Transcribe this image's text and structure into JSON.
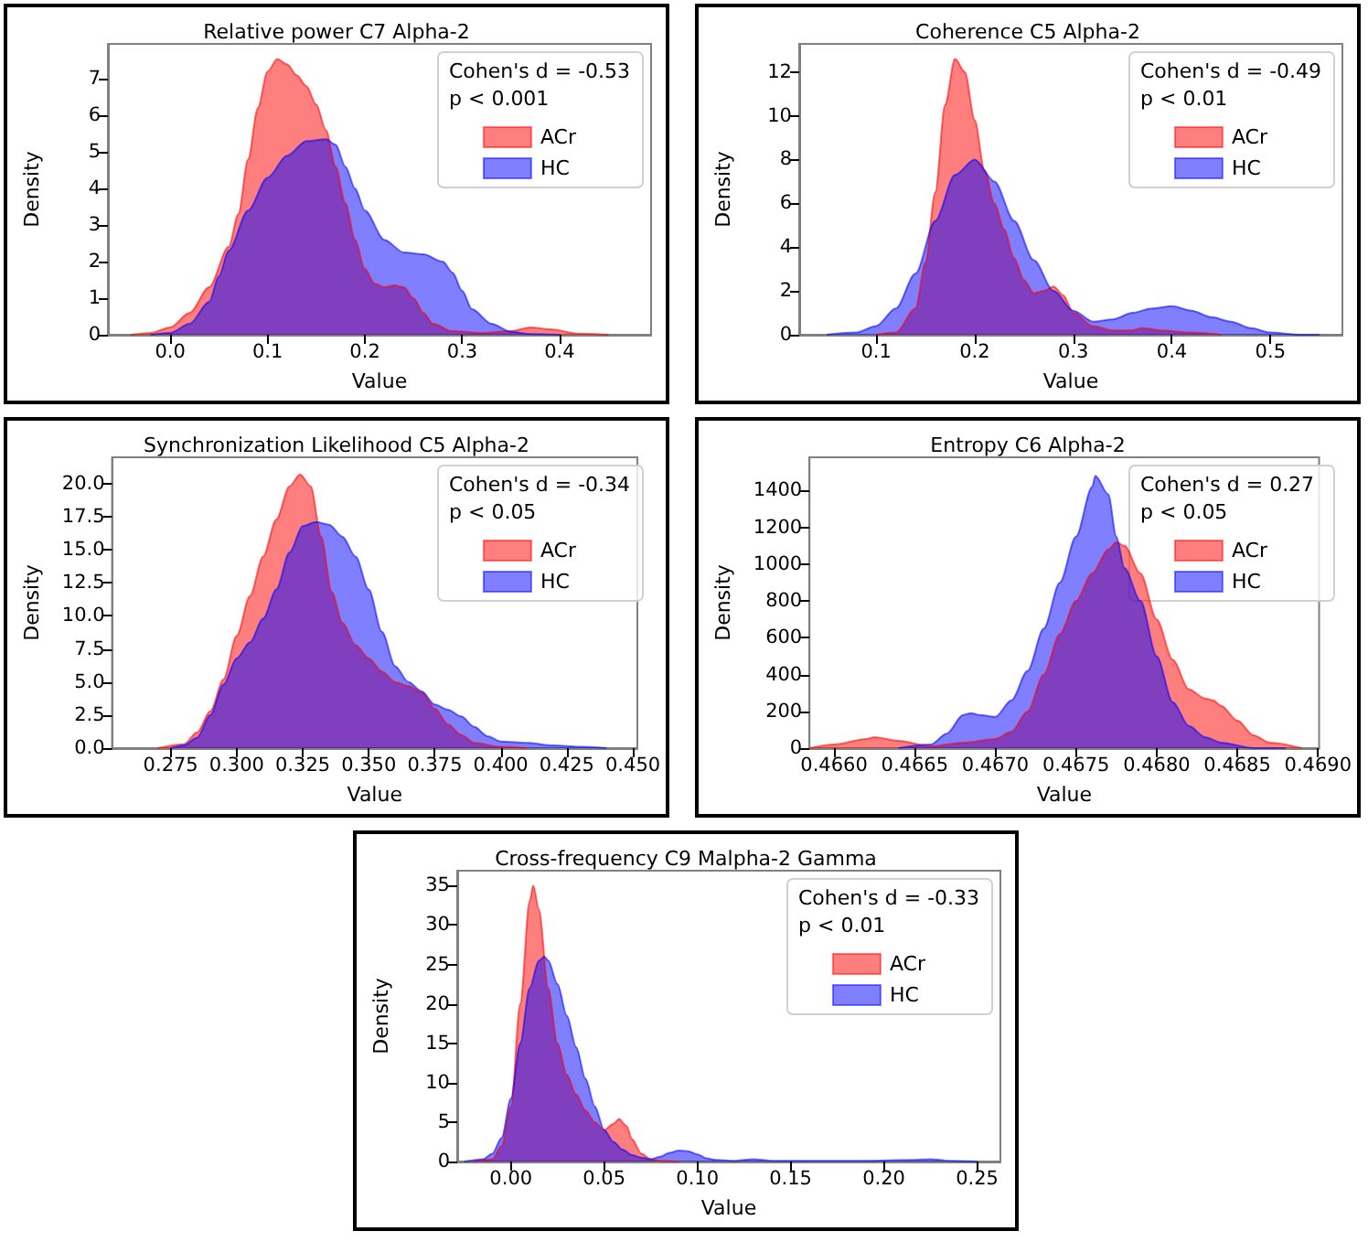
{
  "chart_data": [
    {
      "type": "area",
      "title": "Relative power C7 Alpha-2",
      "xlabel": "Value",
      "ylabel": "Density",
      "legend": "top right",
      "annotations": [
        "Cohen's d = -0.53",
        "p < 0.001"
      ],
      "xlim": [
        -0.064,
        0.494
      ],
      "ylim": [
        0,
        7.96
      ],
      "xticks": [
        {
          "value": 0,
          "label": "0.0"
        },
        0.1,
        0.2,
        0.3,
        0.4
      ],
      "yticks": [
        0,
        1,
        2,
        3,
        4,
        5,
        6,
        7
      ],
      "series": [
        {
          "name": "ACr",
          "color": "#ff0000",
          "x": [
            -0.04,
            -0.02,
            0.0,
            0.02,
            0.04,
            0.06,
            0.07,
            0.08,
            0.09,
            0.1,
            0.11,
            0.12,
            0.13,
            0.14,
            0.15,
            0.16,
            0.17,
            0.18,
            0.19,
            0.2,
            0.21,
            0.22,
            0.23,
            0.24,
            0.25,
            0.26,
            0.27,
            0.29,
            0.32,
            0.35,
            0.37,
            0.39,
            0.42,
            0.45
          ],
          "values": [
            0,
            0.05,
            0.2,
            0.6,
            1.3,
            2.4,
            3.3,
            4.8,
            6.2,
            7.2,
            7.55,
            7.4,
            7.1,
            6.8,
            6.3,
            5.6,
            4.6,
            3.6,
            2.6,
            1.8,
            1.4,
            1.3,
            1.35,
            1.3,
            1.0,
            0.6,
            0.3,
            0.1,
            0.05,
            0.1,
            0.2,
            0.15,
            0.03,
            0
          ]
        },
        {
          "name": "HC",
          "color": "#0000ff",
          "x": [
            -0.02,
            0.0,
            0.02,
            0.04,
            0.05,
            0.06,
            0.08,
            0.1,
            0.12,
            0.14,
            0.16,
            0.17,
            0.18,
            0.19,
            0.2,
            0.22,
            0.24,
            0.26,
            0.28,
            0.29,
            0.3,
            0.31,
            0.33,
            0.35,
            0.37,
            0.4
          ],
          "values": [
            0,
            0.05,
            0.3,
            0.9,
            1.6,
            2.3,
            3.4,
            4.3,
            4.9,
            5.3,
            5.35,
            5.2,
            4.6,
            4.0,
            3.4,
            2.6,
            2.25,
            2.2,
            2.0,
            1.7,
            1.2,
            0.7,
            0.3,
            0.08,
            0.02,
            0
          ]
        }
      ]
    },
    {
      "type": "area",
      "title": "Coherence C5 Alpha-2",
      "xlabel": "Value",
      "ylabel": "Density",
      "legend": "top right",
      "annotations": [
        "Cohen's d = -0.49",
        "p < 0.01"
      ],
      "xlim": [
        0.022,
        0.573
      ],
      "ylim": [
        0,
        13.28
      ],
      "xticks": [
        0.1,
        0.2,
        0.3,
        0.4,
        0.5
      ],
      "yticks": [
        0,
        2,
        4,
        6,
        8,
        10,
        12
      ],
      "series": [
        {
          "name": "ACr",
          "color": "#ff0000",
          "x": [
            0.1,
            0.12,
            0.14,
            0.15,
            0.16,
            0.17,
            0.18,
            0.19,
            0.2,
            0.21,
            0.22,
            0.23,
            0.24,
            0.25,
            0.26,
            0.27,
            0.28,
            0.29,
            0.3,
            0.32,
            0.34,
            0.36,
            0.37,
            0.39,
            0.42,
            0.45
          ],
          "values": [
            0,
            0.1,
            1.2,
            3.3,
            6.5,
            10.5,
            12.6,
            12.0,
            9.8,
            7.5,
            6.0,
            4.8,
            3.5,
            2.5,
            1.9,
            2.0,
            2.2,
            1.8,
            1.0,
            0.4,
            0.2,
            0.2,
            0.3,
            0.2,
            0.1,
            0
          ]
        },
        {
          "name": "HC",
          "color": "#0000ff",
          "x": [
            0.05,
            0.08,
            0.1,
            0.12,
            0.14,
            0.16,
            0.18,
            0.2,
            0.22,
            0.24,
            0.26,
            0.28,
            0.3,
            0.32,
            0.34,
            0.36,
            0.38,
            0.4,
            0.42,
            0.44,
            0.46,
            0.48,
            0.5,
            0.53,
            0.55
          ],
          "values": [
            0,
            0.1,
            0.4,
            1.2,
            2.8,
            5.2,
            7.3,
            8.0,
            7.0,
            5.2,
            3.4,
            2.0,
            1.1,
            0.6,
            0.7,
            1.0,
            1.2,
            1.3,
            1.1,
            0.8,
            0.6,
            0.3,
            0.1,
            0,
            0
          ]
        }
      ]
    },
    {
      "type": "area",
      "title": "Synchronization Likelihood C5 Alpha-2",
      "xlabel": "Value",
      "ylabel": "Density",
      "legend": "top right",
      "annotations": [
        "Cohen's d = -0.34",
        "p < 0.05"
      ],
      "xlim": [
        0.2528,
        0.4517
      ],
      "ylim": [
        0,
        22
      ],
      "xticks": [
        0.275,
        {
          "value": 0.3,
          "label": "0.300"
        },
        0.325,
        {
          "value": 0.35,
          "label": "0.350"
        },
        0.375,
        {
          "value": 0.4,
          "label": "0.400"
        },
        0.425,
        {
          "value": 0.45,
          "label": "0.450"
        }
      ],
      "yticks": [
        {
          "value": 0,
          "label": "0.0"
        },
        2.5,
        {
          "value": 5,
          "label": "5.0"
        },
        7.5,
        {
          "value": 10,
          "label": "10.0"
        },
        12.5,
        {
          "value": 15,
          "label": "15.0"
        },
        17.5,
        {
          "value": 20,
          "label": "20.0"
        }
      ],
      "series": [
        {
          "name": "ACr",
          "color": "#ff0000",
          "x": [
            0.27,
            0.28,
            0.285,
            0.29,
            0.295,
            0.3,
            0.305,
            0.31,
            0.315,
            0.32,
            0.324,
            0.328,
            0.332,
            0.336,
            0.34,
            0.345,
            0.35,
            0.355,
            0.36,
            0.365,
            0.37,
            0.375,
            0.38,
            0.385,
            0.39,
            0.4,
            0.41
          ],
          "values": [
            0,
            0.3,
            1.2,
            2.8,
            5.2,
            8.5,
            11.5,
            14.5,
            17.3,
            19.8,
            20.7,
            19.8,
            16.0,
            11.8,
            9.5,
            7.8,
            6.8,
            5.8,
            5.0,
            4.7,
            4.2,
            3.0,
            1.8,
            1.0,
            0.4,
            0.1,
            0
          ]
        },
        {
          "name": "HC",
          "color": "#0000ff",
          "x": [
            0.275,
            0.28,
            0.285,
            0.29,
            0.295,
            0.3,
            0.305,
            0.31,
            0.315,
            0.32,
            0.325,
            0.33,
            0.335,
            0.34,
            0.345,
            0.35,
            0.355,
            0.36,
            0.365,
            0.37,
            0.375,
            0.38,
            0.385,
            0.39,
            0.395,
            0.4,
            0.41,
            0.42,
            0.43,
            0.44
          ],
          "values": [
            0,
            0.2,
            0.8,
            2.5,
            4.8,
            6.8,
            8.0,
            9.8,
            12.0,
            14.8,
            16.8,
            17.1,
            16.9,
            16.0,
            14.5,
            12.0,
            8.8,
            6.2,
            5.0,
            4.3,
            3.3,
            2.9,
            2.4,
            1.6,
            0.9,
            0.5,
            0.4,
            0.2,
            0.1,
            0
          ]
        }
      ]
    },
    {
      "type": "area",
      "title": "Entropy C6 Alpha-2",
      "xlabel": "Value",
      "ylabel": "Density",
      "legend": "top right",
      "annotations": [
        "Cohen's d = 0.27",
        "p < 0.05"
      ],
      "xlim": [
        0.465848,
        0.469007
      ],
      "ylim": [
        0,
        1581
      ],
      "xticks": [
        {
          "value": 0.466,
          "label": "0.4660"
        },
        0.4665,
        {
          "value": 0.467,
          "label": "0.4670"
        },
        0.4675,
        {
          "value": 0.468,
          "label": "0.4680"
        },
        0.4685,
        {
          "value": 0.469,
          "label": "0.4690"
        }
      ],
      "yticks": [
        0,
        200,
        400,
        600,
        800,
        1000,
        1200,
        1400
      ],
      "series": [
        {
          "name": "ACr",
          "color": "#ff0000",
          "x": [
            0.46585,
            0.466,
            0.4662,
            0.46625,
            0.4664,
            0.4666,
            0.4668,
            0.467,
            0.4671,
            0.4672,
            0.4673,
            0.4674,
            0.4675,
            0.4676,
            0.4677,
            0.46775,
            0.4678,
            0.4679,
            0.468,
            0.4681,
            0.4682,
            0.4683,
            0.46835,
            0.4684,
            0.4685,
            0.4686,
            0.4687,
            0.4689
          ],
          "values": [
            0,
            20,
            50,
            60,
            40,
            10,
            30,
            50,
            90,
            200,
            400,
            620,
            800,
            950,
            1080,
            1120,
            1100,
            950,
            700,
            480,
            320,
            270,
            260,
            230,
            150,
            70,
            30,
            0
          ]
        },
        {
          "name": "HC",
          "color": "#0000ff",
          "x": [
            0.4664,
            0.4666,
            0.4667,
            0.4668,
            0.46685,
            0.4669,
            0.467,
            0.4671,
            0.4672,
            0.4673,
            0.4674,
            0.4675,
            0.4676,
            0.46762,
            0.4677,
            0.46775,
            0.4678,
            0.4679,
            0.468,
            0.4681,
            0.4682,
            0.4683,
            0.4684,
            0.4686,
            0.4688
          ],
          "values": [
            0,
            20,
            80,
            180,
            190,
            180,
            170,
            260,
            420,
            650,
            900,
            1150,
            1420,
            1480,
            1380,
            1150,
            980,
            800,
            500,
            250,
            120,
            60,
            30,
            0,
            0
          ]
        }
      ]
    },
    {
      "type": "area",
      "title": "Cross-frequency C9 Malpha-2 Gamma",
      "xlabel": "Value",
      "ylabel": "Density",
      "legend": "top right",
      "annotations": [
        "Cohen's d = -0.33",
        "p < 0.01"
      ],
      "xlim": [
        -0.0288,
        0.2625
      ],
      "ylim": [
        0,
        36.9
      ],
      "xticks": [
        {
          "value": 0,
          "label": "0.00"
        },
        0.05,
        {
          "value": 0.1,
          "label": "0.10"
        },
        0.15,
        {
          "value": 0.2,
          "label": "0.20"
        },
        0.25
      ],
      "yticks": [
        0,
        5,
        10,
        15,
        20,
        25,
        30,
        35
      ],
      "series": [
        {
          "name": "ACr",
          "color": "#ff0000",
          "x": [
            -0.02,
            -0.01,
            -0.005,
            0.0,
            0.005,
            0.01,
            0.012,
            0.015,
            0.02,
            0.025,
            0.03,
            0.035,
            0.04,
            0.045,
            0.05,
            0.055,
            0.058,
            0.062,
            0.065,
            0.07,
            0.075,
            0.08,
            0.09
          ],
          "values": [
            0,
            0.3,
            2,
            7,
            20,
            33,
            35,
            32,
            22,
            15,
            11,
            8.5,
            6.5,
            5,
            4,
            4.8,
            5.4,
            4.5,
            2.8,
            1,
            0.3,
            0.1,
            0
          ]
        },
        {
          "name": "HC",
          "color": "#0000ff",
          "x": [
            -0.025,
            -0.015,
            -0.01,
            -0.005,
            0.0,
            0.005,
            0.01,
            0.015,
            0.018,
            0.02,
            0.025,
            0.03,
            0.035,
            0.04,
            0.045,
            0.05,
            0.055,
            0.06,
            0.065,
            0.07,
            0.075,
            0.08,
            0.085,
            0.09,
            0.095,
            0.1,
            0.105,
            0.11,
            0.12,
            0.13,
            0.14,
            0.16,
            0.19,
            0.215,
            0.225,
            0.235,
            0.25
          ],
          "values": [
            0,
            0.3,
            1.0,
            3,
            8,
            15,
            22,
            25.5,
            26,
            25.5,
            22.5,
            18.5,
            14.5,
            10.5,
            7,
            4,
            2.5,
            1.5,
            0.8,
            0.5,
            0.3,
            0.6,
            1.1,
            1.4,
            1.3,
            0.9,
            0.4,
            0.2,
            0.1,
            0.3,
            0.1,
            0.1,
            0.1,
            0.2,
            0.3,
            0.1,
            0
          ]
        }
      ]
    }
  ]
}
